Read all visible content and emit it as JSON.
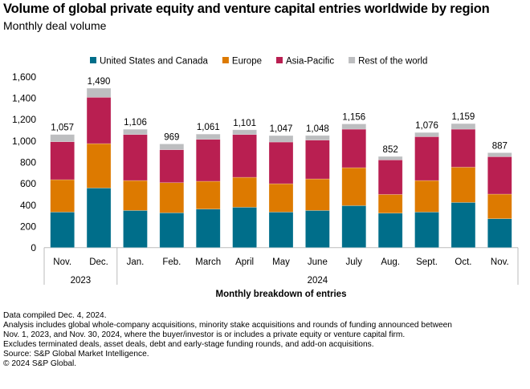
{
  "header": {
    "title": "Volume of global private equity and venture capital entries worldwide by region",
    "subtitle": "Monthly deal volume"
  },
  "chart_data": {
    "type": "bar",
    "stacked": true,
    "title": "Volume of global private equity and venture capital entries worldwide by region",
    "subtitle": "Monthly deal volume",
    "xlabel": "Monthly breakdown of entries",
    "ylabel": "",
    "ylim": [
      0,
      1600
    ],
    "yticks": [
      0,
      200,
      400,
      600,
      800,
      1000,
      1200,
      1400,
      1600
    ],
    "ytick_labels": [
      "0",
      "200",
      "400",
      "600",
      "800",
      "1,000",
      "1,200",
      "1,400",
      "1,600"
    ],
    "grid": false,
    "legend_position": "top",
    "categories": [
      "Nov.",
      "Dec.",
      "Jan.",
      "Feb.",
      "March",
      "April",
      "May",
      "June",
      "July",
      "Aug.",
      "Sept.",
      "Oct.",
      "Nov."
    ],
    "year_groups": [
      {
        "label": "2023",
        "count": 2
      },
      {
        "label": "2024",
        "count": 11
      }
    ],
    "series": [
      {
        "name": "United States and Canada",
        "color": "#006E8A",
        "values": [
          332,
          557,
          347,
          325,
          360,
          377,
          332,
          347,
          392,
          322,
          332,
          422,
          270
        ]
      },
      {
        "name": "Europe",
        "color": "#DD7A00",
        "values": [
          303,
          415,
          280,
          282,
          260,
          280,
          265,
          295,
          355,
          175,
          295,
          330,
          230
        ]
      },
      {
        "name": "Asia-Pacific",
        "color": "#B91F51",
        "values": [
          355,
          433,
          430,
          308,
          392,
          400,
          390,
          363,
          360,
          323,
          410,
          355,
          350
        ]
      },
      {
        "name": "Rest of the world",
        "color": "#BDBEC0",
        "values": [
          67,
          85,
          49,
          54,
          49,
          44,
          60,
          43,
          49,
          32,
          39,
          52,
          37
        ]
      }
    ],
    "totals": [
      1057,
      1490,
      1106,
      969,
      1061,
      1101,
      1047,
      1048,
      1156,
      852,
      1076,
      1159,
      887
    ],
    "total_labels": [
      "1,057",
      "1,490",
      "1,106",
      "969",
      "1,061",
      "1,101",
      "1,047",
      "1,048",
      "1,156",
      "852",
      "1,076",
      "1,159",
      "887"
    ]
  },
  "notes": [
    "Data compiled Dec. 4, 2024.",
    "Analysis includes global whole-company acquisitions, minority stake acquisitions and rounds of funding announced between",
    "Nov. 1, 2023, and Nov. 30, 2024, where the buyer/investor is or includes a private equity or venture capital firm.",
    "Excludes terminated deals, asset deals, debt and early-stage funding rounds, and add-on acquisitions.",
    "Source: S&P Global Market Intelligence.",
    "© 2024 S&P Global."
  ]
}
